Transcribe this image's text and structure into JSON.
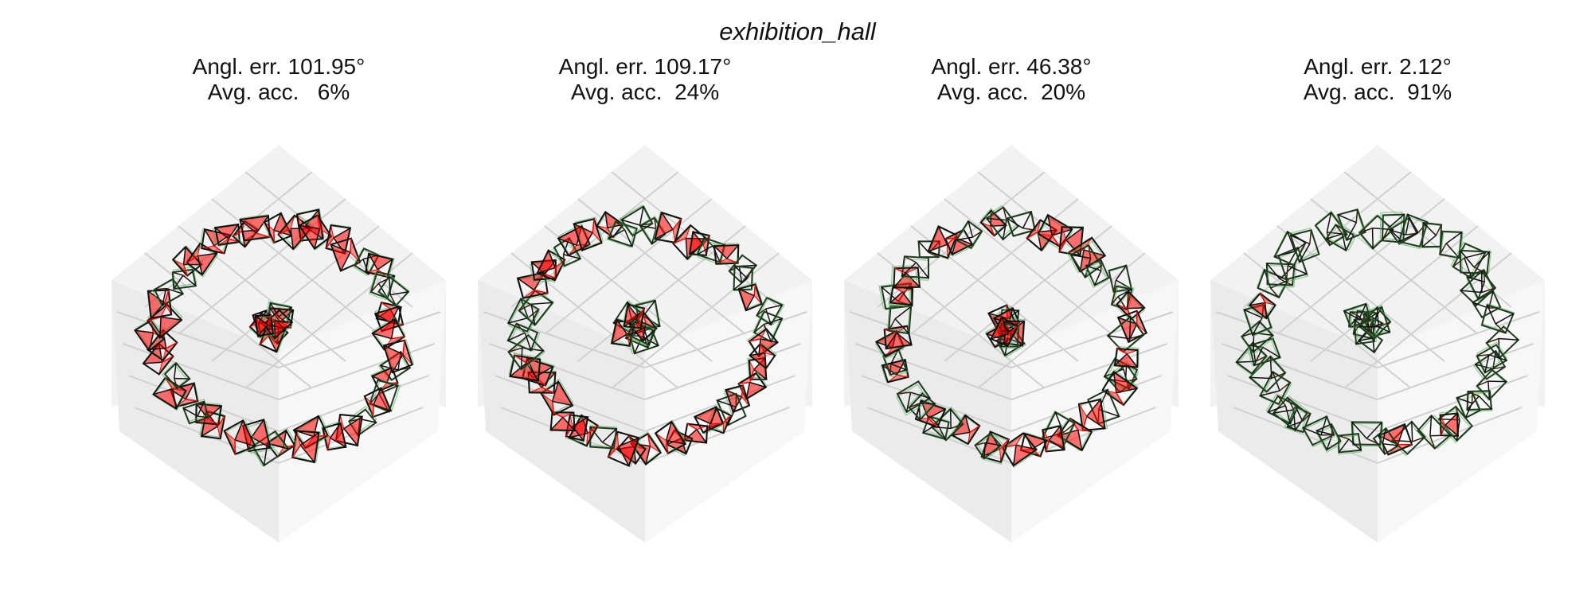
{
  "figure": {
    "title": "exhibition_hall",
    "panels": [
      {
        "angular_label": "Angl. err. 101.95°",
        "accuracy_label": "Avg. acc.   6%",
        "angular_error_deg": 101.95,
        "avg_accuracy_pct": 6
      },
      {
        "angular_label": "Angl. err. 109.17°",
        "accuracy_label": "Avg. acc.  24%",
        "angular_error_deg": 109.17,
        "avg_accuracy_pct": 24
      },
      {
        "angular_label": "Angl. err. 46.38°",
        "accuracy_label": "Avg. acc.  20%",
        "angular_error_deg": 46.38,
        "avg_accuracy_pct": 20
      },
      {
        "angular_label": "Angl. err. 2.12°",
        "accuracy_label": "Avg. acc.  91%",
        "angular_error_deg": 2.12,
        "avg_accuracy_pct": 91
      }
    ],
    "colors": {
      "ground_truth": "#4caf50",
      "misaligned": "#ff0000",
      "aligned": "#111111",
      "pane": "#f2f2f2",
      "grid": "#d0d0d0"
    }
  }
}
